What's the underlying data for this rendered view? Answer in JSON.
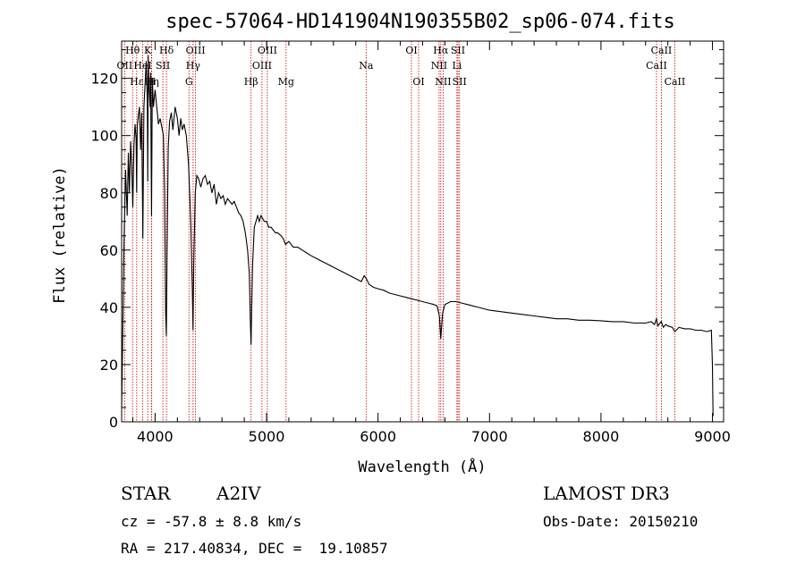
{
  "chart_data": {
    "type": "line",
    "title": "spec-57064-HD141904N190355B02_sp06-074.fits",
    "xlabel": "Wavelength (Å)",
    "ylabel": "Flux (relative)",
    "xlim": [
      3700,
      9100
    ],
    "ylim": [
      0,
      133
    ],
    "x_ticks": [
      4000,
      5000,
      6000,
      7000,
      8000,
      9000
    ],
    "y_ticks": [
      0,
      20,
      40,
      60,
      80,
      100,
      120
    ],
    "grid": false,
    "series": [
      {
        "name": "flux",
        "points": [
          [
            3700,
            5
          ],
          [
            3710,
            30
          ],
          [
            3720,
            60
          ],
          [
            3735,
            88
          ],
          [
            3750,
            72
          ],
          [
            3760,
            94
          ],
          [
            3770,
            80
          ],
          [
            3780,
            98
          ],
          [
            3790,
            90
          ],
          [
            3800,
            75
          ],
          [
            3810,
            96
          ],
          [
            3820,
            104
          ],
          [
            3830,
            99
          ],
          [
            3835,
            80
          ],
          [
            3840,
            103
          ],
          [
            3850,
            107
          ],
          [
            3860,
            110
          ],
          [
            3870,
            95
          ],
          [
            3880,
            108
          ],
          [
            3890,
            64
          ],
          [
            3900,
            110
          ],
          [
            3910,
            118
          ],
          [
            3920,
            126
          ],
          [
            3930,
            112
          ],
          [
            3934,
            84
          ],
          [
            3938,
            128
          ],
          [
            3945,
            118
          ],
          [
            3955,
            110
          ],
          [
            3960,
            122
          ],
          [
            3968,
            72
          ],
          [
            3975,
            120
          ],
          [
            3985,
            110
          ],
          [
            4000,
            116
          ],
          [
            4010,
            112
          ],
          [
            4020,
            108
          ],
          [
            4030,
            104
          ],
          [
            4045,
            106
          ],
          [
            4060,
            103
          ],
          [
            4075,
            100
          ],
          [
            4085,
            80
          ],
          [
            4095,
            38
          ],
          [
            4101,
            30
          ],
          [
            4108,
            60
          ],
          [
            4118,
            96
          ],
          [
            4130,
            105
          ],
          [
            4145,
            108
          ],
          [
            4160,
            102
          ],
          [
            4180,
            110
          ],
          [
            4200,
            106
          ],
          [
            4215,
            100
          ],
          [
            4230,
            106
          ],
          [
            4245,
            102
          ],
          [
            4260,
            104
          ],
          [
            4280,
            100
          ],
          [
            4300,
            90
          ],
          [
            4320,
            70
          ],
          [
            4335,
            45
          ],
          [
            4340,
            32
          ],
          [
            4347,
            55
          ],
          [
            4360,
            80
          ],
          [
            4375,
            86
          ],
          [
            4390,
            85
          ],
          [
            4410,
            82
          ],
          [
            4430,
            85
          ],
          [
            4450,
            86
          ],
          [
            4470,
            83
          ],
          [
            4490,
            84
          ],
          [
            4510,
            80
          ],
          [
            4530,
            83
          ],
          [
            4550,
            76
          ],
          [
            4570,
            80
          ],
          [
            4590,
            78
          ],
          [
            4610,
            79
          ],
          [
            4630,
            76
          ],
          [
            4650,
            78
          ],
          [
            4670,
            77
          ],
          [
            4690,
            76
          ],
          [
            4710,
            77
          ],
          [
            4730,
            75
          ],
          [
            4750,
            73
          ],
          [
            4770,
            72
          ],
          [
            4790,
            70
          ],
          [
            4810,
            66
          ],
          [
            4830,
            60
          ],
          [
            4845,
            52
          ],
          [
            4855,
            35
          ],
          [
            4861,
            27
          ],
          [
            4866,
            38
          ],
          [
            4875,
            55
          ],
          [
            4890,
            68
          ],
          [
            4905,
            70
          ],
          [
            4920,
            72
          ],
          [
            4935,
            70
          ],
          [
            4950,
            72
          ],
          [
            4965,
            71
          ],
          [
            4980,
            70
          ],
          [
            5000,
            70
          ],
          [
            5020,
            68
          ],
          [
            5040,
            68
          ],
          [
            5060,
            67
          ],
          [
            5080,
            66
          ],
          [
            5100,
            66
          ],
          [
            5130,
            65
          ],
          [
            5150,
            64
          ],
          [
            5170,
            62
          ],
          [
            5200,
            63
          ],
          [
            5240,
            61
          ],
          [
            5280,
            61
          ],
          [
            5320,
            60
          ],
          [
            5360,
            59
          ],
          [
            5400,
            58
          ],
          [
            5450,
            57
          ],
          [
            5500,
            56
          ],
          [
            5550,
            55
          ],
          [
            5600,
            54
          ],
          [
            5650,
            53
          ],
          [
            5700,
            52
          ],
          [
            5750,
            51
          ],
          [
            5800,
            50
          ],
          [
            5850,
            49
          ],
          [
            5875,
            51
          ],
          [
            5895,
            50
          ],
          [
            5920,
            48
          ],
          [
            5960,
            47
          ],
          [
            6000,
            46.5
          ],
          [
            6050,
            46
          ],
          [
            6100,
            45
          ],
          [
            6150,
            44.5
          ],
          [
            6200,
            44
          ],
          [
            6250,
            43.5
          ],
          [
            6300,
            43
          ],
          [
            6350,
            42.5
          ],
          [
            6400,
            42
          ],
          [
            6450,
            41.5
          ],
          [
            6500,
            41
          ],
          [
            6530,
            40.5
          ],
          [
            6550,
            37
          ],
          [
            6558,
            32
          ],
          [
            6563,
            29
          ],
          [
            6568,
            32
          ],
          [
            6580,
            38
          ],
          [
            6600,
            41
          ],
          [
            6650,
            42
          ],
          [
            6700,
            42
          ],
          [
            6750,
            41.5
          ],
          [
            6800,
            41
          ],
          [
            6850,
            40.5
          ],
          [
            6900,
            40
          ],
          [
            6950,
            39.5
          ],
          [
            7000,
            39
          ],
          [
            7100,
            38.5
          ],
          [
            7200,
            38
          ],
          [
            7300,
            37.5
          ],
          [
            7400,
            37
          ],
          [
            7500,
            36.5
          ],
          [
            7600,
            36
          ],
          [
            7700,
            36
          ],
          [
            7800,
            35.5
          ],
          [
            7900,
            35.5
          ],
          [
            8000,
            35.3
          ],
          [
            8100,
            35
          ],
          [
            8200,
            35
          ],
          [
            8300,
            34.5
          ],
          [
            8400,
            34.5
          ],
          [
            8450,
            35
          ],
          [
            8480,
            34
          ],
          [
            8498,
            36
          ],
          [
            8510,
            33.5
          ],
          [
            8540,
            35
          ],
          [
            8560,
            33
          ],
          [
            8580,
            34
          ],
          [
            8600,
            33.5
          ],
          [
            8640,
            33
          ],
          [
            8662,
            31.5
          ],
          [
            8700,
            33
          ],
          [
            8750,
            32.5
          ],
          [
            8800,
            32.5
          ],
          [
            8850,
            32
          ],
          [
            8900,
            32
          ],
          [
            8950,
            31.5
          ],
          [
            8990,
            32
          ],
          [
            9000,
            20
          ],
          [
            9005,
            2
          ]
        ]
      }
    ],
    "lines_row1": [
      {
        "label": "Hθ",
        "x": 3798
      },
      {
        "label": "K",
        "x": 3934
      },
      {
        "label": "Hδ",
        "x": 4102
      },
      {
        "label": "OIII",
        "x": 4363
      },
      {
        "label": "OIII",
        "x": 5007
      },
      {
        "label": "OI",
        "x": 6300
      },
      {
        "label": "Hα",
        "x": 6563
      },
      {
        "label": "SII",
        "x": 6717
      },
      {
        "label": "CaII",
        "x": 8542
      }
    ],
    "lines_row2": [
      {
        "label": "OII",
        "x": 3727
      },
      {
        "label": "HeI",
        "x": 3889
      },
      {
        "label": "SII",
        "x": 4070
      },
      {
        "label": "Hγ",
        "x": 4341
      },
      {
        "label": "OIII",
        "x": 4959
      },
      {
        "label": "Na",
        "x": 5893
      },
      {
        "label": "NII",
        "x": 6548
      },
      {
        "label": "Li",
        "x": 6708
      },
      {
        "label": "CaII",
        "x": 8498
      }
    ],
    "lines_row3": [
      {
        "label": "Hε",
        "x": 3835
      },
      {
        "label": "Hη",
        "x": 3970
      },
      {
        "label": "H",
        "x": 3968
      },
      {
        "label": "G",
        "x": 4304
      },
      {
        "label": "Hβ",
        "x": 4861
      },
      {
        "label": "Mg",
        "x": 5175
      },
      {
        "label": "OI",
        "x": 6364
      },
      {
        "label": "NII",
        "x": 6584
      },
      {
        "label": "SII",
        "x": 6731
      },
      {
        "label": "CaII",
        "x": 8662
      }
    ],
    "extra_line_markers": [
      3889,
      3934,
      3968,
      4102,
      4304,
      4341,
      4861,
      4959,
      5007,
      5175,
      5893,
      6300,
      6364,
      6548,
      6563,
      6584,
      6708,
      6717,
      6731,
      8498,
      8542,
      8662
    ]
  },
  "info": {
    "object_type": "STAR",
    "subclass": "A2IV",
    "survey": "LAMOST DR3",
    "cz": "cz = -57.8 ± 8.8 km/s",
    "obs_date": "Obs-Date: 20150210",
    "coords": "RA = 217.40834, DEC =  19.10857"
  },
  "colors": {
    "line_marker": "#cc0000",
    "spectrum": "#000000"
  }
}
